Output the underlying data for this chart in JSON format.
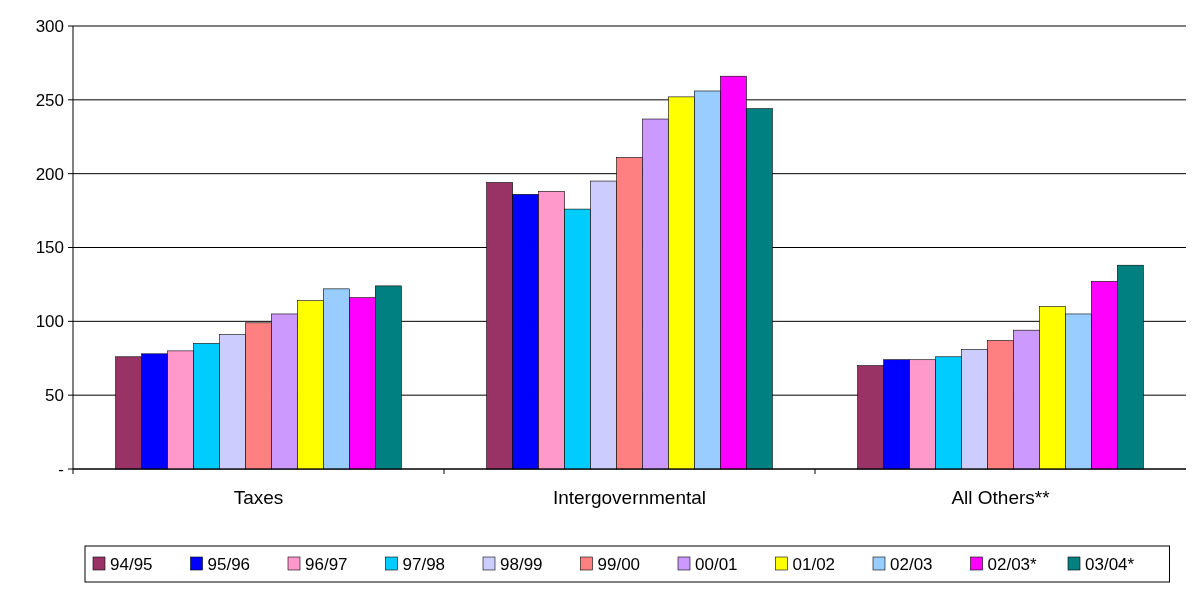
{
  "chart_data": {
    "type": "bar",
    "categories": [
      "Taxes",
      "Intergovernmental",
      "All Others**"
    ],
    "ylim": [
      0,
      300
    ],
    "yticks": [
      {
        "value": 0,
        "label": "-"
      },
      50,
      100,
      150,
      200,
      250,
      300
    ],
    "grid": "y",
    "legend": "bottom",
    "series": [
      {
        "name": "94/95",
        "color": "#993366",
        "values": [
          76,
          194,
          70
        ]
      },
      {
        "name": "95/96",
        "color": "#0000ff",
        "values": [
          78,
          186,
          74
        ]
      },
      {
        "name": "96/97",
        "color": "#ff99cc",
        "values": [
          80,
          188,
          74
        ]
      },
      {
        "name": "97/98",
        "color": "#00ccff",
        "values": [
          85,
          176,
          76
        ]
      },
      {
        "name": "98/99",
        "color": "#ccccff",
        "values": [
          91,
          195,
          81
        ]
      },
      {
        "name": "99/00",
        "color": "#ff8080",
        "values": [
          99,
          211,
          87
        ]
      },
      {
        "name": "00/01",
        "color": "#cc99ff",
        "values": [
          105,
          237,
          94
        ]
      },
      {
        "name": "01/02",
        "color": "#ffff00",
        "values": [
          114,
          252,
          110
        ]
      },
      {
        "name": "02/03",
        "color": "#99ccff",
        "values": [
          122,
          256,
          105
        ]
      },
      {
        "name": "02/03*",
        "color": "#ff00ff",
        "values": [
          116,
          266,
          127
        ]
      },
      {
        "name": "03/04*",
        "color": "#008080",
        "values": [
          124,
          244,
          138
        ]
      }
    ]
  }
}
